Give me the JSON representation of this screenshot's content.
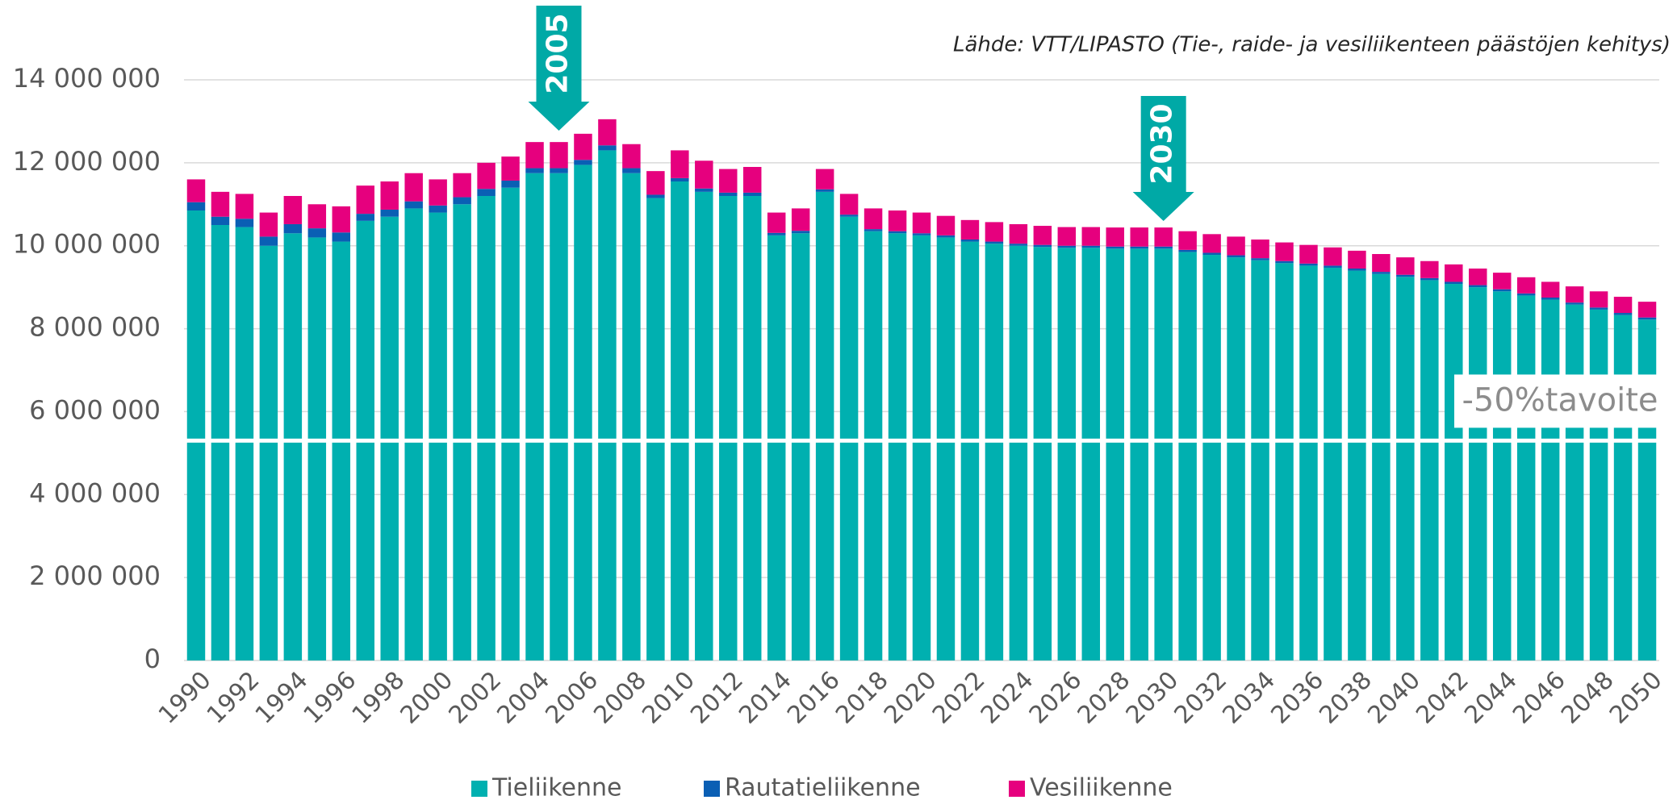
{
  "chart_data": {
    "type": "stacked-bar",
    "source": "Lähde: VTT/LIPASTO (Tie-, raide- ja vesiliikenteen päästöjen kehitys)",
    "categories": [
      "1990",
      null,
      "1992",
      null,
      "1994",
      null,
      "1996",
      null,
      "1998",
      null,
      "2000",
      null,
      "2002",
      null,
      "2004",
      null,
      "2006",
      null,
      "2008",
      null,
      "2010",
      null,
      "2012",
      null,
      "2014",
      null,
      "2016",
      null,
      "2018",
      null,
      "2020",
      null,
      "2022",
      null,
      "2024",
      null,
      "2026",
      null,
      "2028",
      null,
      "2030",
      null,
      "2032",
      null,
      "2034",
      null,
      "2036",
      null,
      "2038",
      null,
      "2040",
      null,
      "2042",
      null,
      "2044",
      null,
      "2046",
      null,
      "2048",
      null,
      "2050"
    ],
    "series": [
      {
        "name": "Tieliikenne",
        "color": "#00b0b0",
        "values": [
          10850000,
          10500000,
          10450000,
          10000000,
          10300000,
          10200000,
          10100000,
          10600000,
          10700000,
          10900000,
          10800000,
          11000000,
          11200000,
          11400000,
          11750000,
          11750000,
          11950000,
          12300000,
          11750000,
          11150000,
          11550000,
          11300000,
          11200000,
          11200000,
          10250000,
          10300000,
          11300000,
          10700000,
          10350000,
          10300000,
          10250000,
          10200000,
          10100000,
          10050000,
          10000000,
          9970000,
          9950000,
          9950000,
          9930000,
          9930000,
          9930000,
          9850000,
          9780000,
          9720000,
          9650000,
          9580000,
          9520000,
          9470000,
          9400000,
          9320000,
          9250000,
          9170000,
          9080000,
          9000000,
          8900000,
          8800000,
          8700000,
          8580000,
          8460000,
          8330000,
          8220000
        ]
      },
      {
        "name": "Rautatieliikenne",
        "color": "#0a5fb4",
        "values": [
          200000,
          200000,
          200000,
          220000,
          220000,
          220000,
          220000,
          170000,
          170000,
          170000,
          170000,
          170000,
          170000,
          170000,
          120000,
          120000,
          120000,
          120000,
          120000,
          80000,
          80000,
          80000,
          80000,
          80000,
          60000,
          60000,
          60000,
          50000,
          50000,
          50000,
          50000,
          50000,
          50000,
          50000,
          50000,
          50000,
          50000,
          50000,
          50000,
          50000,
          50000,
          50000,
          50000,
          50000,
          50000,
          50000,
          50000,
          50000,
          50000,
          50000,
          50000,
          50000,
          50000,
          50000,
          50000,
          50000,
          50000,
          50000,
          50000,
          50000,
          50000
        ]
      },
      {
        "name": "Vesiliikenne",
        "color": "#e6007e",
        "values": [
          550000,
          600000,
          600000,
          580000,
          680000,
          580000,
          630000,
          680000,
          680000,
          680000,
          630000,
          580000,
          630000,
          580000,
          630000,
          630000,
          630000,
          630000,
          580000,
          570000,
          670000,
          670000,
          570000,
          620000,
          490000,
          540000,
          490000,
          500000,
          500000,
          500000,
          500000,
          470000,
          470000,
          470000,
          470000,
          460000,
          450000,
          450000,
          460000,
          460000,
          460000,
          450000,
          450000,
          450000,
          450000,
          450000,
          450000,
          440000,
          430000,
          430000,
          420000,
          410000,
          420000,
          400000,
          400000,
          390000,
          380000,
          390000,
          390000,
          390000,
          380000
        ]
      }
    ],
    "ylim": [
      0,
      14000000
    ],
    "yticks": [
      0,
      {
        "value": 2000000,
        "label": "2 000 000"
      },
      {
        "value": 4000000,
        "label": "4 000 000"
      },
      {
        "value": 6000000,
        "label": "6 000 000"
      },
      {
        "value": 8000000,
        "label": "8 000 000"
      },
      {
        "value": 10000000,
        "label": "10 000 000"
      },
      {
        "value": 12000000,
        "label": "12 000 000"
      },
      {
        "value": 14000000,
        "label": "14 000 000"
      }
    ],
    "grid": true,
    "legend": "bottom",
    "target": {
      "value": 5300000,
      "label": "-50%tavoite"
    },
    "markers": [
      {
        "label": "2005",
        "color": "#00a9a6"
      },
      {
        "label": "2030",
        "color": "#00a9a6"
      }
    ]
  }
}
